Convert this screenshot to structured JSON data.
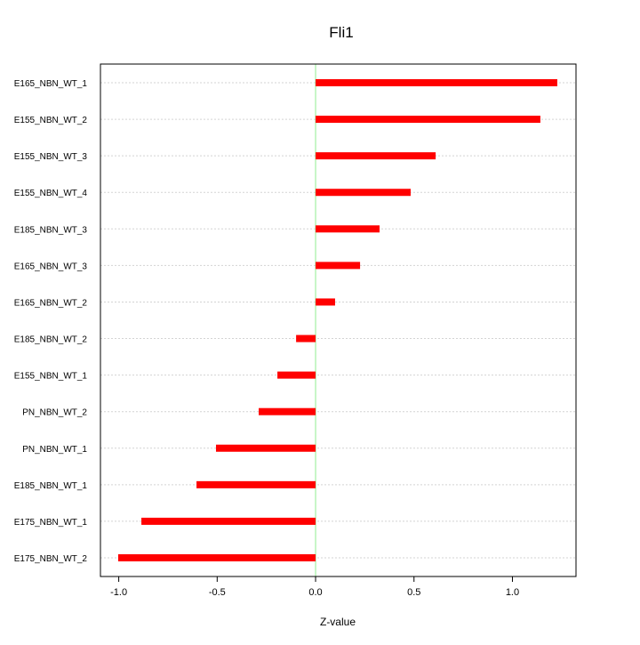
{
  "chart_data": {
    "type": "bar",
    "orientation": "horizontal",
    "title": "Fli1",
    "xlabel": "Z-value",
    "ylabel": "",
    "xlim": [
      -1.093,
      1.323
    ],
    "xticks": [
      -1.0,
      -0.5,
      0.0,
      0.5,
      1.0
    ],
    "xtick_labels": [
      "-1.0",
      "-0.5",
      "0.0",
      "0.5",
      "1.0"
    ],
    "grid": true,
    "categories": [
      "E165_NBN_WT_1",
      "E155_NBN_WT_2",
      "E155_NBN_WT_3",
      "E155_NBN_WT_4",
      "E185_NBN_WT_3",
      "E165_NBN_WT_3",
      "E165_NBN_WT_2",
      "E185_NBN_WT_2",
      "E155_NBN_WT_1",
      "PN_NBN_WT_2",
      "PN_NBN_WT_1",
      "E185_NBN_WT_1",
      "E175_NBN_WT_1",
      "E175_NBN_WT_2"
    ],
    "values": [
      1.228,
      1.142,
      0.61,
      0.483,
      0.325,
      0.226,
      0.099,
      -0.099,
      -0.194,
      -0.289,
      -0.506,
      -0.605,
      -0.885,
      -1.003
    ],
    "colors": {
      "bar": "#ff0000",
      "zero_line": "#90ee90",
      "grid": "#d3d3d3"
    }
  }
}
